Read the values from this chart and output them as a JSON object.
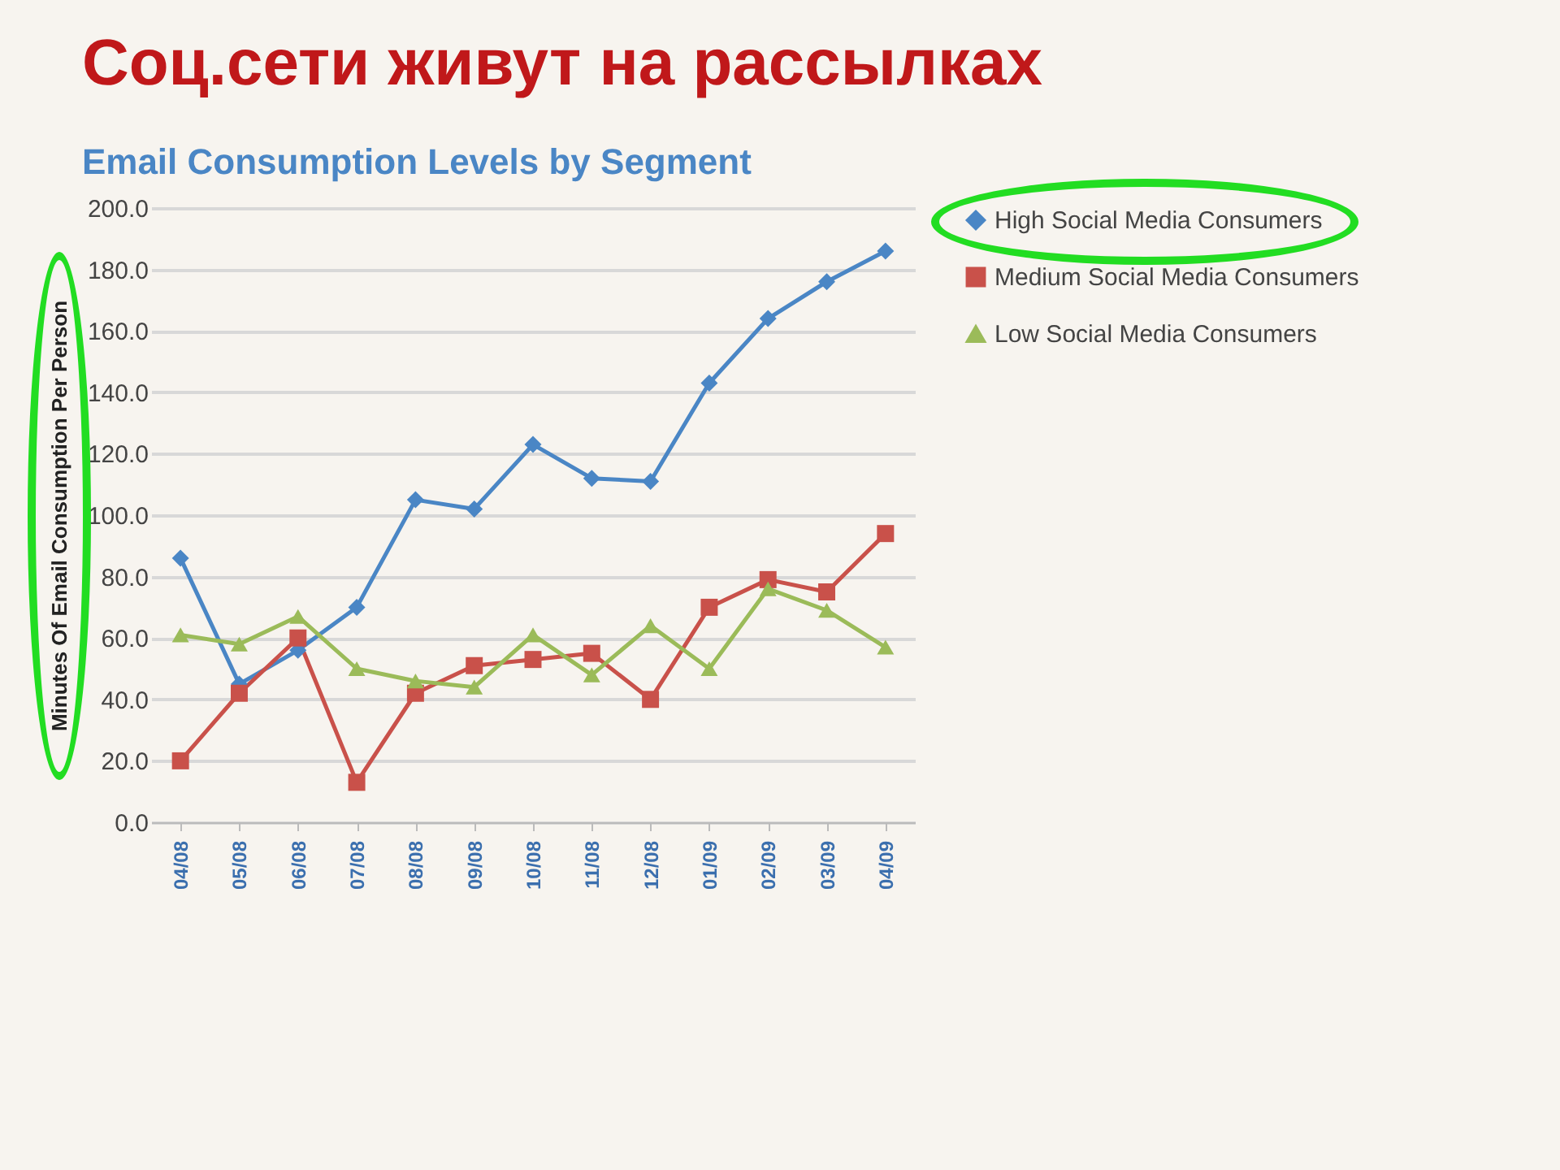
{
  "chart_data": {
    "type": "line",
    "title": "Соц.сети живут на рассылках",
    "subtitle": "Email Consumption Levels by Segment",
    "ylabel": "Minutes Of Email Consumption Per Person",
    "categories": [
      "04/08",
      "05/08",
      "06/08",
      "07/08",
      "08/08",
      "09/08",
      "10/08",
      "11/08",
      "12/08",
      "01/09",
      "02/09",
      "03/09",
      "04/09"
    ],
    "series": [
      {
        "name": "High Social Media Consumers",
        "color": "#4a86c5",
        "marker": "diamond",
        "values": [
          86,
          45,
          56,
          70,
          105,
          102,
          123,
          112,
          111,
          143,
          164,
          176,
          186
        ]
      },
      {
        "name": "Medium Social Media Consumers",
        "color": "#c9514a",
        "marker": "square",
        "values": [
          20,
          42,
          60,
          13,
          42,
          51,
          53,
          55,
          40,
          70,
          79,
          75,
          94
        ]
      },
      {
        "name": "Low Social Media Consumers",
        "color": "#9bbb59",
        "marker": "triangle",
        "values": [
          61,
          58,
          67,
          50,
          46,
          44,
          61,
          48,
          64,
          50,
          76,
          69,
          57
        ]
      }
    ],
    "ylim": [
      0,
      200
    ],
    "yticks": [
      {
        "value": 0,
        "label": "0.0"
      },
      {
        "value": 20,
        "label": "20.0"
      },
      {
        "value": 40,
        "label": "40.0"
      },
      {
        "value": 60,
        "label": "60.0"
      },
      {
        "value": 80,
        "label": "80.0"
      },
      {
        "value": 100,
        "label": "100.0"
      },
      {
        "value": 120,
        "label": "120.0"
      },
      {
        "value": 140,
        "label": "140.0"
      },
      {
        "value": 160,
        "label": "160.0"
      },
      {
        "value": 180,
        "label": "180.0"
      },
      {
        "value": 200,
        "label": "200.0"
      }
    ],
    "grid": "y",
    "legend": "right",
    "line_style": "solid"
  }
}
